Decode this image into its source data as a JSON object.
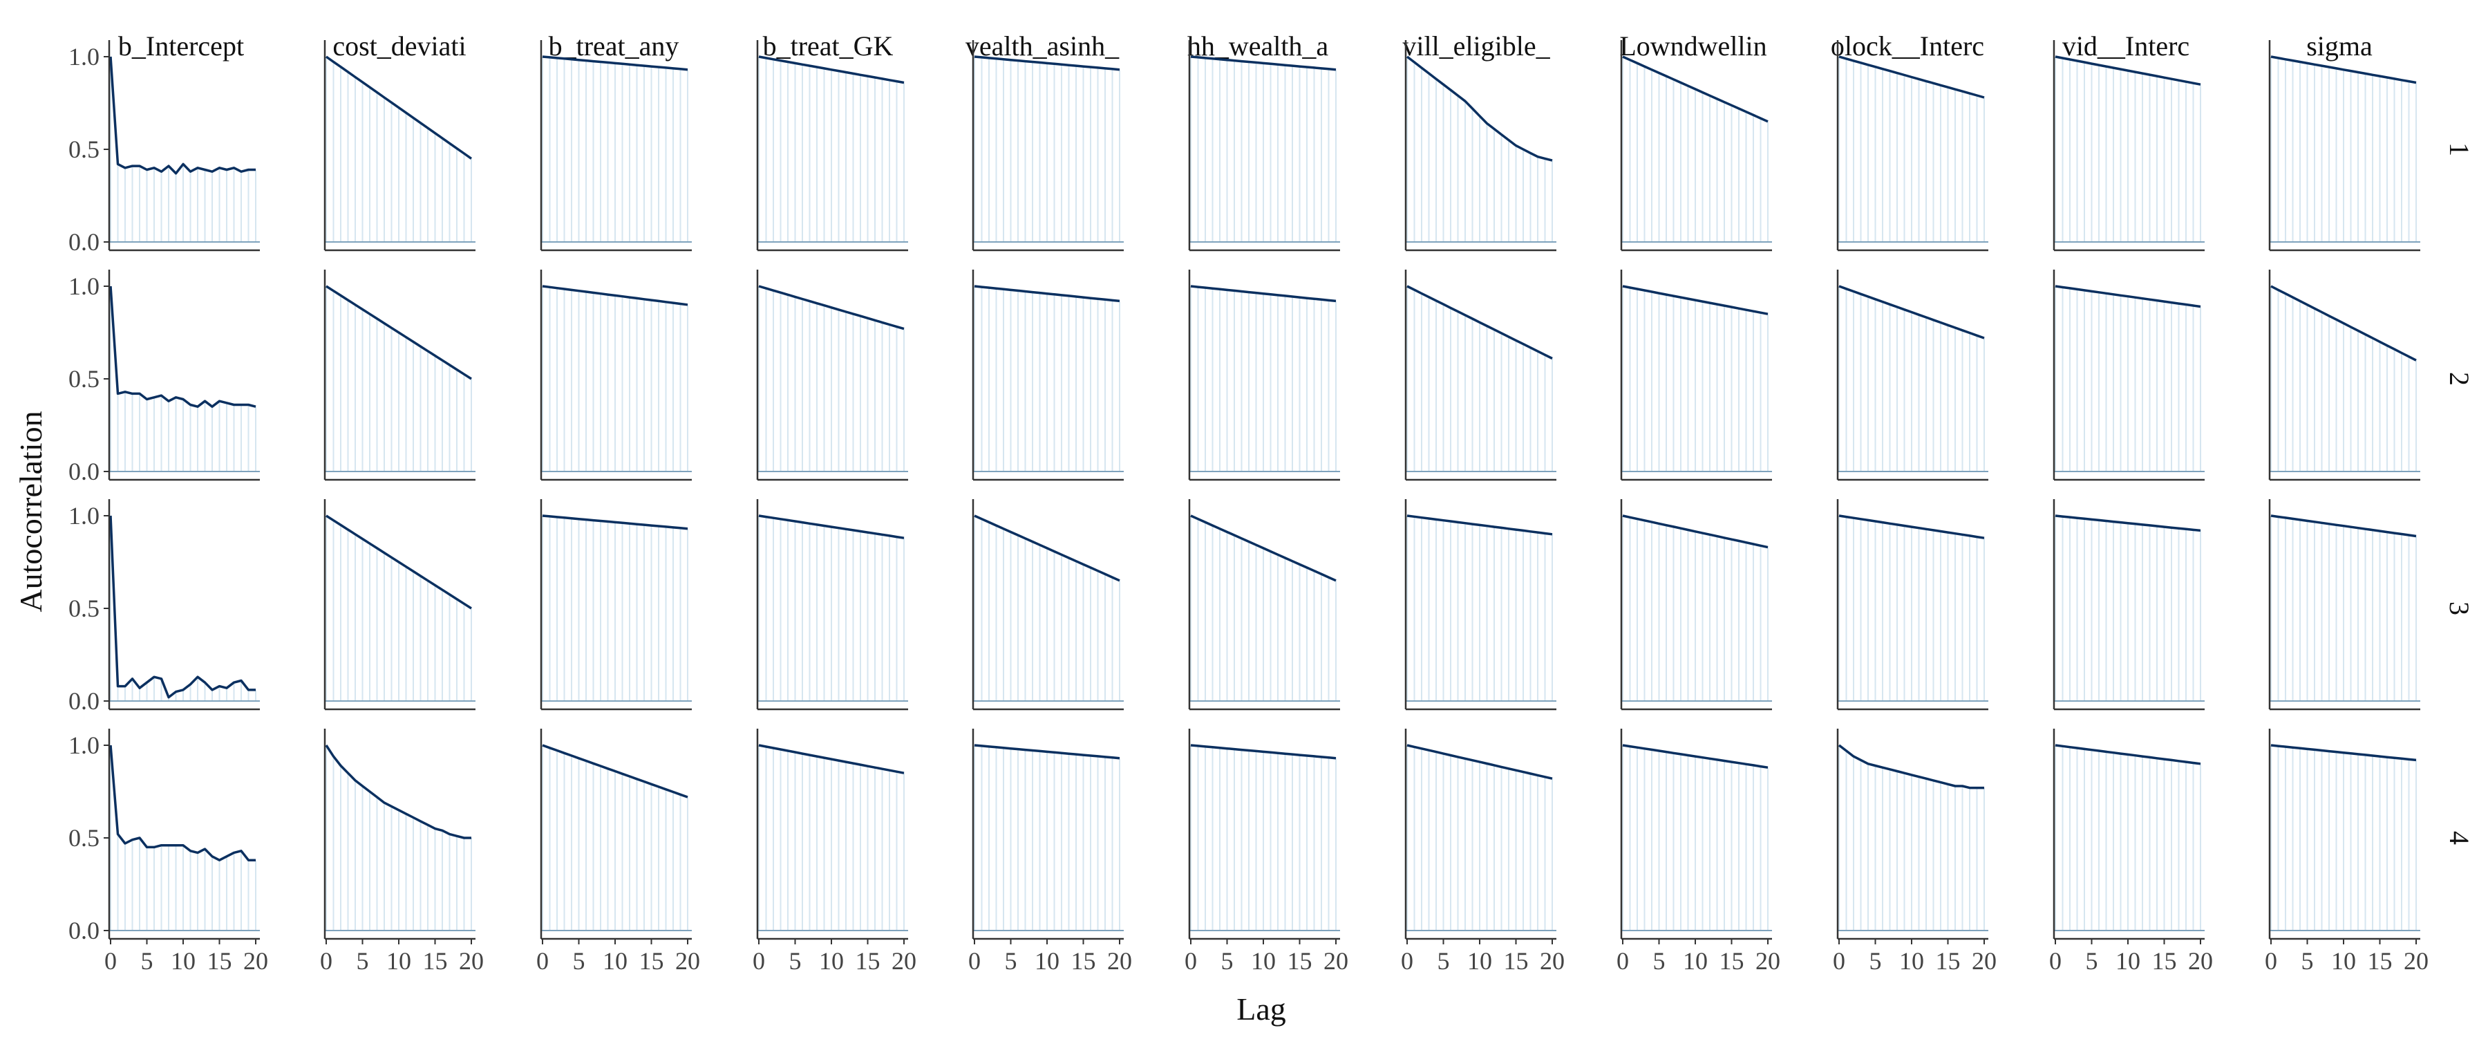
{
  "chart_data": {
    "type": "line",
    "xlabel": "Lag",
    "ylabel": "Autocorrelation",
    "xlim": [
      0,
      20
    ],
    "ylim": [
      0,
      1
    ],
    "x_ticks": [
      0,
      5,
      10,
      15,
      20
    ],
    "y_ticks": [
      0.0,
      0.5,
      1.0
    ],
    "y_tick_labels": [
      "0.0",
      "0.5",
      "1.0"
    ],
    "grid": false,
    "line_color": "#0b3060",
    "lag_bar_color": "#d6e6f0",
    "zero_line_color": "#7fa3bd",
    "columns": [
      "b_Intercept",
      "_cost_deviatio",
      "b_treat_any",
      "b_treat_GK",
      "wealth_asinh_",
      "hh_wealth_a",
      "vill_eligible_",
      "_Lowndwellin",
      "block__Interc",
      "_vid__Interce",
      "sigma"
    ],
    "column_labels": [
      "b_Intercept",
      "cost_deviati",
      "b_treat_any",
      "b_treat_GK",
      "vealth_asinh_",
      "hh_wealth_a",
      "vill_eligible_",
      "Lowndwellin",
      "olock__Interc",
      "vid__Interc",
      "sigma"
    ],
    "rows": [
      "1",
      "2",
      "3",
      "4"
    ],
    "x": [
      0,
      1,
      2,
      3,
      4,
      5,
      6,
      7,
      8,
      9,
      10,
      11,
      12,
      13,
      14,
      15,
      16,
      17,
      18,
      19,
      20
    ],
    "panels": [
      [
        {
          "values": [
            1.0,
            0.42,
            0.4,
            0.41,
            0.41,
            0.39,
            0.4,
            0.38,
            0.41,
            0.37,
            0.42,
            0.38,
            0.4,
            0.39,
            0.38,
            0.4,
            0.39,
            0.4,
            0.38,
            0.39,
            0.39
          ]
        },
        {
          "start": 1.0,
          "end": 0.45
        },
        {
          "start": 1.0,
          "end": 0.93
        },
        {
          "start": 1.0,
          "end": 0.86
        },
        {
          "start": 1.0,
          "end": 0.93
        },
        {
          "start": 1.0,
          "end": 0.93
        },
        {
          "values": [
            1.0,
            0.97,
            0.94,
            0.91,
            0.88,
            0.85,
            0.82,
            0.79,
            0.76,
            0.72,
            0.68,
            0.64,
            0.61,
            0.58,
            0.55,
            0.52,
            0.5,
            0.48,
            0.46,
            0.45,
            0.44
          ]
        },
        {
          "start": 1.0,
          "end": 0.65
        },
        {
          "start": 1.0,
          "end": 0.78
        },
        {
          "start": 1.0,
          "end": 0.85
        },
        {
          "start": 1.0,
          "end": 0.86
        }
      ],
      [
        {
          "values": [
            1.0,
            0.42,
            0.43,
            0.42,
            0.42,
            0.39,
            0.4,
            0.41,
            0.38,
            0.4,
            0.39,
            0.36,
            0.35,
            0.38,
            0.35,
            0.38,
            0.37,
            0.36,
            0.36,
            0.36,
            0.35
          ]
        },
        {
          "start": 1.0,
          "end": 0.5
        },
        {
          "start": 1.0,
          "end": 0.9
        },
        {
          "start": 1.0,
          "end": 0.77
        },
        {
          "start": 1.0,
          "end": 0.92
        },
        {
          "start": 1.0,
          "end": 0.92
        },
        {
          "start": 1.0,
          "end": 0.61
        },
        {
          "start": 1.0,
          "end": 0.85
        },
        {
          "start": 1.0,
          "end": 0.72
        },
        {
          "start": 1.0,
          "end": 0.89
        },
        {
          "start": 1.0,
          "end": 0.6
        }
      ],
      [
        {
          "values": [
            1.0,
            0.08,
            0.08,
            0.12,
            0.07,
            0.1,
            0.13,
            0.12,
            0.02,
            0.05,
            0.06,
            0.09,
            0.13,
            0.1,
            0.06,
            0.08,
            0.07,
            0.1,
            0.11,
            0.06,
            0.06
          ]
        },
        {
          "start": 1.0,
          "end": 0.5
        },
        {
          "start": 1.0,
          "end": 0.93
        },
        {
          "start": 1.0,
          "end": 0.88
        },
        {
          "start": 1.0,
          "end": 0.65
        },
        {
          "start": 1.0,
          "end": 0.65
        },
        {
          "start": 1.0,
          "end": 0.9
        },
        {
          "start": 1.0,
          "end": 0.83
        },
        {
          "start": 1.0,
          "end": 0.88
        },
        {
          "start": 1.0,
          "end": 0.92
        },
        {
          "start": 1.0,
          "end": 0.89
        }
      ],
      [
        {
          "values": [
            1.0,
            0.52,
            0.47,
            0.49,
            0.5,
            0.45,
            0.45,
            0.46,
            0.46,
            0.46,
            0.46,
            0.43,
            0.42,
            0.44,
            0.4,
            0.38,
            0.4,
            0.42,
            0.43,
            0.38,
            0.38
          ]
        },
        {
          "values": [
            1.0,
            0.94,
            0.89,
            0.85,
            0.81,
            0.78,
            0.75,
            0.72,
            0.69,
            0.67,
            0.65,
            0.63,
            0.61,
            0.59,
            0.57,
            0.55,
            0.54,
            0.52,
            0.51,
            0.5,
            0.5
          ]
        },
        {
          "start": 1.0,
          "end": 0.72
        },
        {
          "start": 1.0,
          "end": 0.85
        },
        {
          "start": 1.0,
          "end": 0.93
        },
        {
          "start": 1.0,
          "end": 0.93
        },
        {
          "start": 1.0,
          "end": 0.82
        },
        {
          "start": 1.0,
          "end": 0.88
        },
        {
          "values": [
            1.0,
            0.97,
            0.94,
            0.92,
            0.9,
            0.89,
            0.88,
            0.87,
            0.86,
            0.85,
            0.84,
            0.83,
            0.82,
            0.81,
            0.8,
            0.79,
            0.78,
            0.78,
            0.77,
            0.77,
            0.77
          ]
        },
        {
          "start": 1.0,
          "end": 0.9
        },
        {
          "start": 1.0,
          "end": 0.92
        }
      ]
    ]
  }
}
